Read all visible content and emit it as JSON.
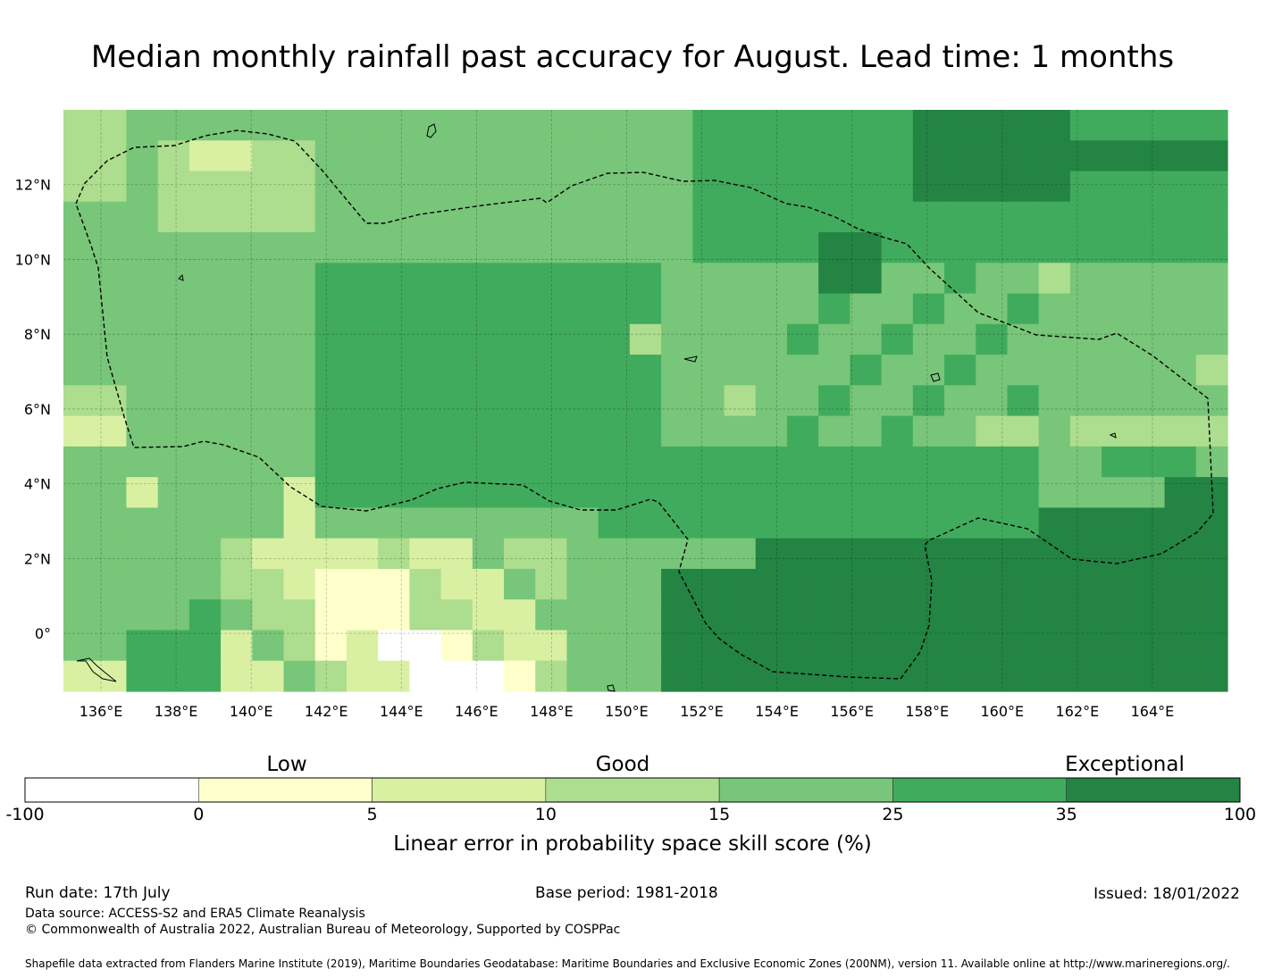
{
  "title": "Median monthly rainfall past accuracy for August. Lead time: 1 months",
  "map": {
    "lon_range": [
      135,
      166
    ],
    "lat_range": [
      -1.55,
      14
    ],
    "lon_ticks": [
      "136°E",
      "138°E",
      "140°E",
      "142°E",
      "144°E",
      "146°E",
      "148°E",
      "150°E",
      "152°E",
      "154°E",
      "156°E",
      "158°E",
      "160°E",
      "162°E",
      "164°E"
    ],
    "lat_ticks": [
      "12°N",
      "10°N",
      "8°N",
      "6°N",
      "4°N",
      "2°N",
      "0°"
    ],
    "grid_lines": true,
    "eez_boundary": "dashed"
  },
  "legend": {
    "categories": [
      {
        "label": "Low"
      },
      {
        "label": "Good"
      },
      {
        "label": "Exceptional"
      }
    ],
    "bins": [
      {
        "from": "-100",
        "to": "0",
        "color": "#ffffff"
      },
      {
        "from": "0",
        "to": "5",
        "color": "#ffffcc"
      },
      {
        "from": "5",
        "to": "10",
        "color": "#d9f0a3"
      },
      {
        "from": "10",
        "to": "15",
        "color": "#addd8e"
      },
      {
        "from": "15",
        "to": "25",
        "color": "#78c679"
      },
      {
        "from": "25",
        "to": "35",
        "color": "#41ab5d"
      },
      {
        "from": "35",
        "to": "100",
        "color": "#238443"
      }
    ],
    "tick_labels": [
      "-100",
      "0",
      "5",
      "10",
      "15",
      "25",
      "35",
      "100"
    ],
    "title": "Linear error in probability space skill score (%)"
  },
  "footer": {
    "run_date": "Run date: 17th July",
    "base_period": "Base period: 1981-2018",
    "issued": "Issued: 18/01/2022",
    "data_source": "Data source: ACCESS-S2 and ERA5 Climate Reanalysis",
    "copyright": "© Commonwealth of Australia 2022, Australian Bureau of Meteorology, Supported by COSPPac",
    "shapefile": "Shapefile data extracted from Flanders Marine Institute (2019), Maritime Boundaries Geodatabase: Maritime Boundaries and Exclusive Economic Zones (200NM), version 11. Available online at http://www.marineregions.org/."
  }
}
